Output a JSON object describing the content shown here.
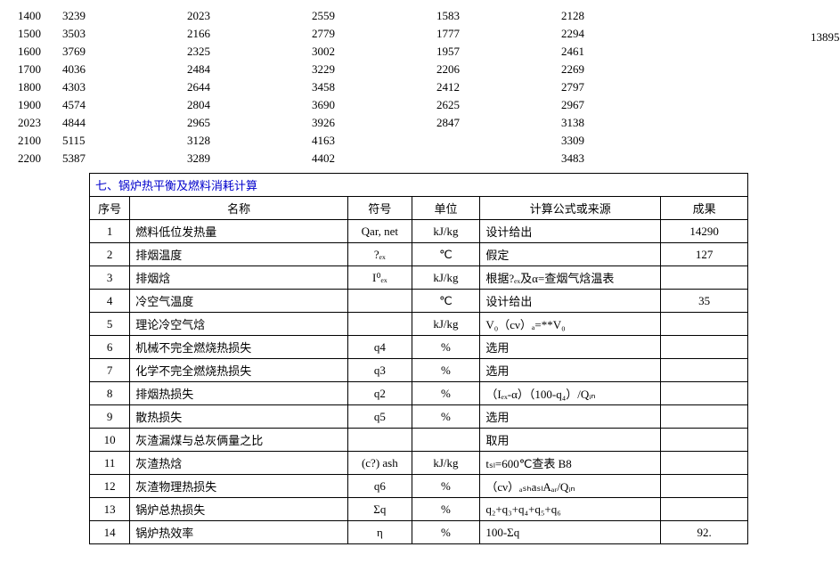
{
  "numeric_table": {
    "rows": [
      [
        "1400",
        "3239",
        "2023",
        "2559",
        "1583",
        "2128"
      ],
      [
        "1500",
        "3503",
        "2166",
        "2779",
        "1777",
        "2294"
      ],
      [
        "1600",
        "3769",
        "2325",
        "3002",
        "1957",
        "2461"
      ],
      [
        "1700",
        "4036",
        "2484",
        "3229",
        "2206",
        "2269"
      ],
      [
        "1800",
        "4303",
        "2644",
        "3458",
        "2412",
        "2797"
      ],
      [
        "1900",
        "4574",
        "2804",
        "3690",
        "2625",
        "2967"
      ],
      [
        "2023",
        "4844",
        "2965",
        "3926",
        "2847",
        "3138"
      ],
      [
        "2100",
        "5115",
        "3128",
        "4163",
        "",
        "3309"
      ],
      [
        "2200",
        "5387",
        "3289",
        "4402",
        "",
        "3483"
      ]
    ],
    "outlier": "13895"
  },
  "section": {
    "title": "七、锅炉热平衡及燃料消耗计算",
    "headers": {
      "seq": "序号",
      "name": "名称",
      "sym": "符号",
      "unit": "单位",
      "src": "计算公式或来源",
      "res": "成果"
    },
    "rows": [
      {
        "seq": "1",
        "name": "燃料低位发热量",
        "sym": "Qar, net",
        "unit": "kJ/kg",
        "src": "设计给出",
        "res": "14290"
      },
      {
        "seq": "2",
        "name": "排烟温度",
        "sym": "?ₑₓ",
        "unit": "℃",
        "src": "假定",
        "res": "127"
      },
      {
        "seq": "3",
        "name": "排烟焓",
        "sym": "I⁰ₑₓ",
        "unit": "kJ/kg",
        "src": "根据?ₑₓ及α=查烟气焓温表",
        "res": ""
      },
      {
        "seq": "4",
        "name": "冷空气温度",
        "sym": "",
        "unit": "℃",
        "src": "设计给出",
        "res": "35"
      },
      {
        "seq": "5",
        "name": "理论冷空气焓",
        "sym": "",
        "unit": "kJ/kg",
        "src": "V₀（cν）ₐ=**V₀",
        "res": ""
      },
      {
        "seq": "6",
        "name": "机械不完全燃烧热损失",
        "sym": "q4",
        "unit": "%",
        "src": "选用",
        "res": ""
      },
      {
        "seq": "7",
        "name": "化学不完全燃烧热损失",
        "sym": "q3",
        "unit": "%",
        "src": "选用",
        "res": ""
      },
      {
        "seq": "8",
        "name": "排烟热损失",
        "sym": "q2",
        "unit": "%",
        "src": "（Iₑₓ-α）（100-q₄）/Qᵢₙ",
        "res": ""
      },
      {
        "seq": "9",
        "name": "散热损失",
        "sym": "q5",
        "unit": "%",
        "src": "选用",
        "res": ""
      },
      {
        "seq": "10",
        "name": "灰渣漏煤与总灰俩量之比",
        "sym": "",
        "unit": "",
        "src": "取用",
        "res": ""
      },
      {
        "seq": "11",
        "name": "灰渣热焓",
        "sym": "(c?) ash",
        "unit": "kJ/kg",
        "src": "tₛₗ=600℃查表 B8",
        "res": ""
      },
      {
        "seq": "12",
        "name": "灰渣物理热损失",
        "sym": "q6",
        "unit": "%",
        "src": "（cν）ₐₛₕaₛₗAₐᵣ/Qᵢₙ",
        "res": ""
      },
      {
        "seq": "13",
        "name": "锅炉总热损失",
        "sym": "Σq",
        "unit": "%",
        "src": "q₂+q₃+q₄+q₅+q₆",
        "res": ""
      },
      {
        "seq": "14",
        "name": "锅炉热效率",
        "sym": "η",
        "unit": "%",
        "src": "100-Σq",
        "res": "92."
      }
    ]
  }
}
